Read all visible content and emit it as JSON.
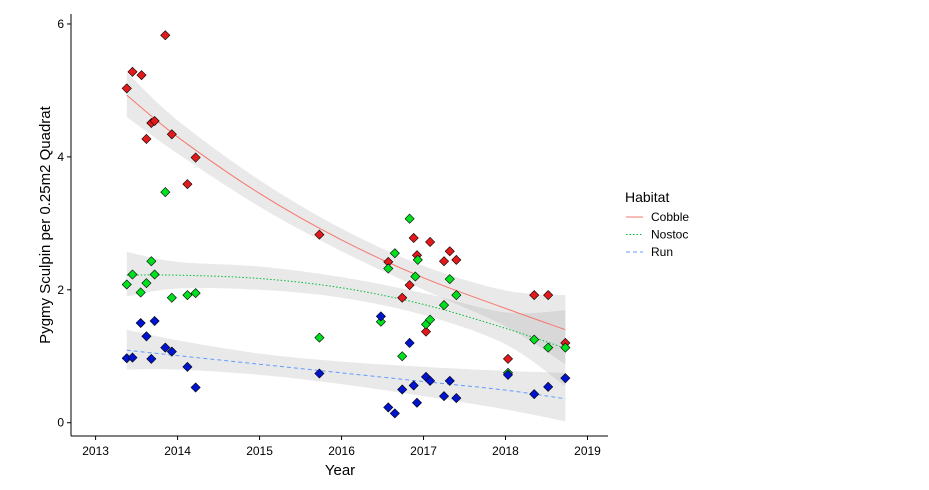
{
  "chart_data": {
    "type": "scatter",
    "title": "",
    "xlabel": "Year",
    "ylabel": "Pygmy Sculpin per 0.25m2 Quadrat",
    "xlim": [
      2012.7,
      2019.25
    ],
    "ylim": [
      -0.2,
      6.15
    ],
    "x_ticks": [
      2013,
      2014,
      2015,
      2016,
      2017,
      2018,
      2019
    ],
    "y_ticks": [
      0,
      2,
      4,
      6
    ],
    "grid": false,
    "legend": {
      "title": "Habitat",
      "placement": "right",
      "entries": [
        "Cobble",
        "Nostoc",
        "Run"
      ]
    },
    "series": [
      {
        "name": "Cobble",
        "color": "#E31A1C",
        "line_color": "#F8766D",
        "line_style": "solid",
        "points": [
          [
            2013.38,
            5.03
          ],
          [
            2013.45,
            5.28
          ],
          [
            2013.56,
            5.23
          ],
          [
            2013.62,
            4.27
          ],
          [
            2013.68,
            4.51
          ],
          [
            2013.72,
            4.54
          ],
          [
            2013.85,
            5.83
          ],
          [
            2013.93,
            4.34
          ],
          [
            2014.12,
            3.59
          ],
          [
            2014.22,
            3.99
          ],
          [
            2015.73,
            2.83
          ],
          [
            2016.57,
            2.42
          ],
          [
            2016.74,
            1.88
          ],
          [
            2016.83,
            2.07
          ],
          [
            2016.88,
            2.78
          ],
          [
            2016.92,
            2.52
          ],
          [
            2017.03,
            1.37
          ],
          [
            2017.08,
            2.72
          ],
          [
            2017.25,
            2.43
          ],
          [
            2017.32,
            2.58
          ],
          [
            2017.4,
            2.45
          ],
          [
            2018.03,
            0.96
          ],
          [
            2018.35,
            1.92
          ],
          [
            2018.52,
            1.92
          ],
          [
            2018.73,
            1.2
          ]
        ],
        "trend": [
          [
            2013.38,
            4.93
          ],
          [
            2014.0,
            4.3
          ],
          [
            2015.0,
            3.45
          ],
          [
            2016.0,
            2.75
          ],
          [
            2017.0,
            2.18
          ],
          [
            2018.0,
            1.72
          ],
          [
            2018.73,
            1.4
          ]
        ],
        "band_lower": [
          [
            2013.38,
            4.6
          ],
          [
            2014.0,
            4.05
          ],
          [
            2015.0,
            3.25
          ],
          [
            2016.0,
            2.58
          ],
          [
            2017.0,
            2.0
          ],
          [
            2018.0,
            1.45
          ],
          [
            2018.73,
            0.88
          ]
        ],
        "band_upper": [
          [
            2013.38,
            5.27
          ],
          [
            2014.0,
            4.55
          ],
          [
            2015.0,
            3.65
          ],
          [
            2016.0,
            2.92
          ],
          [
            2017.0,
            2.36
          ],
          [
            2018.0,
            1.99
          ],
          [
            2018.73,
            1.92
          ]
        ]
      },
      {
        "name": "Nostoc",
        "color": "#00E01E",
        "line_color": "#00BA38",
        "line_style": "dotted",
        "points": [
          [
            2013.38,
            2.08
          ],
          [
            2013.45,
            2.23
          ],
          [
            2013.55,
            1.96
          ],
          [
            2013.62,
            2.1
          ],
          [
            2013.68,
            2.43
          ],
          [
            2013.72,
            2.23
          ],
          [
            2013.85,
            3.47
          ],
          [
            2013.93,
            1.88
          ],
          [
            2014.12,
            1.92
          ],
          [
            2014.22,
            1.95
          ],
          [
            2015.73,
            1.28
          ],
          [
            2016.48,
            1.52
          ],
          [
            2016.57,
            2.32
          ],
          [
            2016.65,
            2.55
          ],
          [
            2016.74,
            1.0
          ],
          [
            2016.83,
            3.07
          ],
          [
            2016.9,
            2.2
          ],
          [
            2016.93,
            2.45
          ],
          [
            2017.03,
            1.48
          ],
          [
            2017.08,
            1.55
          ],
          [
            2017.25,
            1.77
          ],
          [
            2017.32,
            2.16
          ],
          [
            2017.4,
            1.92
          ],
          [
            2018.03,
            0.75
          ],
          [
            2018.35,
            1.25
          ],
          [
            2018.52,
            1.13
          ],
          [
            2018.73,
            1.13
          ]
        ],
        "trend": [
          [
            2013.38,
            2.22
          ],
          [
            2014.0,
            2.22
          ],
          [
            2015.0,
            2.17
          ],
          [
            2016.0,
            2.03
          ],
          [
            2017.0,
            1.78
          ],
          [
            2018.0,
            1.42
          ],
          [
            2018.73,
            1.12
          ]
        ],
        "band_lower": [
          [
            2013.38,
            1.9
          ],
          [
            2014.0,
            2.02
          ],
          [
            2015.0,
            2.0
          ],
          [
            2016.0,
            1.88
          ],
          [
            2017.0,
            1.62
          ],
          [
            2018.0,
            1.18
          ],
          [
            2018.73,
            0.55
          ]
        ],
        "band_upper": [
          [
            2013.38,
            2.57
          ],
          [
            2014.0,
            2.42
          ],
          [
            2015.0,
            2.35
          ],
          [
            2016.0,
            2.19
          ],
          [
            2017.0,
            1.95
          ],
          [
            2018.0,
            1.66
          ],
          [
            2018.73,
            1.69
          ]
        ]
      },
      {
        "name": "Run",
        "color": "#0013CE",
        "line_color": "#619CFF",
        "line_style": "dashed",
        "points": [
          [
            2013.38,
            0.97
          ],
          [
            2013.45,
            0.98
          ],
          [
            2013.55,
            1.5
          ],
          [
            2013.62,
            1.3
          ],
          [
            2013.68,
            0.96
          ],
          [
            2013.72,
            1.53
          ],
          [
            2013.85,
            1.13
          ],
          [
            2013.93,
            1.07
          ],
          [
            2014.12,
            0.84
          ],
          [
            2014.22,
            0.53
          ],
          [
            2015.73,
            0.74
          ],
          [
            2016.48,
            1.6
          ],
          [
            2016.57,
            0.23
          ],
          [
            2016.65,
            0.14
          ],
          [
            2016.74,
            0.5
          ],
          [
            2016.83,
            1.2
          ],
          [
            2016.88,
            0.56
          ],
          [
            2016.92,
            0.3
          ],
          [
            2017.03,
            0.69
          ],
          [
            2017.08,
            0.63
          ],
          [
            2017.25,
            0.4
          ],
          [
            2017.32,
            0.63
          ],
          [
            2017.4,
            0.37
          ],
          [
            2018.03,
            0.72
          ],
          [
            2018.35,
            0.43
          ],
          [
            2018.52,
            0.54
          ],
          [
            2018.73,
            0.67
          ]
        ],
        "trend": [
          [
            2013.38,
            1.09
          ],
          [
            2014.0,
            1.01
          ],
          [
            2015.0,
            0.88
          ],
          [
            2016.0,
            0.75
          ],
          [
            2017.0,
            0.62
          ],
          [
            2018.0,
            0.49
          ],
          [
            2018.73,
            0.36
          ]
        ],
        "band_lower": [
          [
            2013.38,
            0.8
          ],
          [
            2014.0,
            0.8
          ],
          [
            2015.0,
            0.72
          ],
          [
            2016.0,
            0.58
          ],
          [
            2017.0,
            0.4
          ],
          [
            2018.0,
            0.2
          ],
          [
            2018.73,
            0.02
          ]
        ],
        "band_upper": [
          [
            2013.38,
            1.4
          ],
          [
            2014.0,
            1.24
          ],
          [
            2015.0,
            1.04
          ],
          [
            2016.0,
            0.92
          ],
          [
            2017.0,
            0.84
          ],
          [
            2018.0,
            0.78
          ],
          [
            2018.73,
            0.75
          ]
        ]
      }
    ]
  }
}
